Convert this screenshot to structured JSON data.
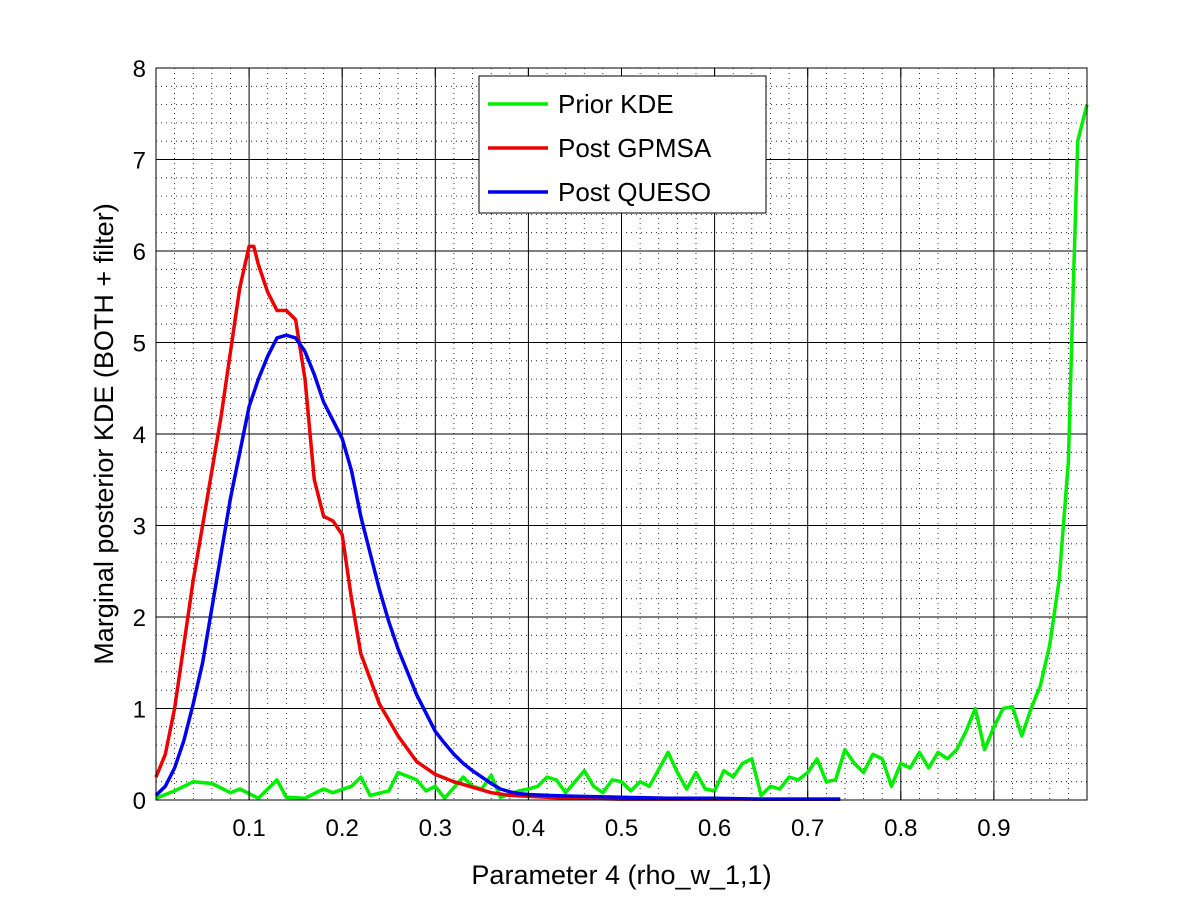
{
  "chart_data": {
    "type": "line",
    "title": "",
    "xlabel": "Parameter 4 (rho_w_1,1)",
    "ylabel": "Marginal posterior KDE (BOTH + filter)",
    "xlim": [
      0,
      1
    ],
    "ylim": [
      0,
      8
    ],
    "xticks": [
      0.1,
      0.2,
      0.3,
      0.4,
      0.5,
      0.6,
      0.7,
      0.8,
      0.9
    ],
    "xtick_labels": [
      "0.1",
      "0.2",
      "0.3",
      "0.4",
      "0.5",
      "0.6",
      "0.7",
      "0.8",
      "0.9"
    ],
    "yticks": [
      0,
      1,
      2,
      3,
      4,
      5,
      6,
      7,
      8
    ],
    "ytick_labels": [
      "0",
      "1",
      "2",
      "3",
      "4",
      "5",
      "6",
      "7",
      "8"
    ],
    "grid": true,
    "minor_grid": true,
    "legend_position": "top-center",
    "series": [
      {
        "name": "Prior KDE",
        "color": "#00ee00",
        "points": [
          [
            0.0,
            0.02
          ],
          [
            0.02,
            0.1
          ],
          [
            0.04,
            0.2
          ],
          [
            0.06,
            0.18
          ],
          [
            0.08,
            0.08
          ],
          [
            0.09,
            0.12
          ],
          [
            0.11,
            0.02
          ],
          [
            0.13,
            0.22
          ],
          [
            0.14,
            0.03
          ],
          [
            0.16,
            0.02
          ],
          [
            0.18,
            0.12
          ],
          [
            0.19,
            0.08
          ],
          [
            0.21,
            0.15
          ],
          [
            0.22,
            0.25
          ],
          [
            0.23,
            0.05
          ],
          [
            0.25,
            0.1
          ],
          [
            0.26,
            0.3
          ],
          [
            0.28,
            0.22
          ],
          [
            0.29,
            0.1
          ],
          [
            0.3,
            0.15
          ],
          [
            0.31,
            0.02
          ],
          [
            0.33,
            0.25
          ],
          [
            0.34,
            0.15
          ],
          [
            0.35,
            0.12
          ],
          [
            0.36,
            0.27
          ],
          [
            0.37,
            0.03
          ],
          [
            0.39,
            0.1
          ],
          [
            0.4,
            0.12
          ],
          [
            0.41,
            0.15
          ],
          [
            0.42,
            0.25
          ],
          [
            0.43,
            0.22
          ],
          [
            0.44,
            0.08
          ],
          [
            0.46,
            0.32
          ],
          [
            0.47,
            0.15
          ],
          [
            0.48,
            0.08
          ],
          [
            0.49,
            0.22
          ],
          [
            0.5,
            0.2
          ],
          [
            0.51,
            0.1
          ],
          [
            0.52,
            0.2
          ],
          [
            0.53,
            0.15
          ],
          [
            0.55,
            0.52
          ],
          [
            0.56,
            0.3
          ],
          [
            0.57,
            0.12
          ],
          [
            0.58,
            0.3
          ],
          [
            0.59,
            0.12
          ],
          [
            0.6,
            0.1
          ],
          [
            0.61,
            0.32
          ],
          [
            0.62,
            0.25
          ],
          [
            0.63,
            0.4
          ],
          [
            0.64,
            0.45
          ],
          [
            0.65,
            0.05
          ],
          [
            0.66,
            0.15
          ],
          [
            0.67,
            0.12
          ],
          [
            0.68,
            0.25
          ],
          [
            0.69,
            0.22
          ],
          [
            0.7,
            0.3
          ],
          [
            0.71,
            0.45
          ],
          [
            0.72,
            0.2
          ],
          [
            0.73,
            0.22
          ],
          [
            0.74,
            0.55
          ],
          [
            0.75,
            0.4
          ],
          [
            0.76,
            0.3
          ],
          [
            0.77,
            0.5
          ],
          [
            0.78,
            0.45
          ],
          [
            0.79,
            0.15
          ],
          [
            0.8,
            0.4
          ],
          [
            0.81,
            0.35
          ],
          [
            0.82,
            0.52
          ],
          [
            0.83,
            0.35
          ],
          [
            0.84,
            0.52
          ],
          [
            0.85,
            0.45
          ],
          [
            0.86,
            0.55
          ],
          [
            0.87,
            0.75
          ],
          [
            0.88,
            1.0
          ],
          [
            0.89,
            0.55
          ],
          [
            0.9,
            0.8
          ],
          [
            0.91,
            1.0
          ],
          [
            0.92,
            1.02
          ],
          [
            0.93,
            0.7
          ],
          [
            0.94,
            1.0
          ],
          [
            0.95,
            1.25
          ],
          [
            0.96,
            1.7
          ],
          [
            0.97,
            2.4
          ],
          [
            0.98,
            3.7
          ],
          [
            0.985,
            5.5
          ],
          [
            0.99,
            7.2
          ],
          [
            1.0,
            7.6
          ]
        ]
      },
      {
        "name": "Post GPMSA",
        "color": "#ee0000",
        "points": [
          [
            0.0,
            0.25
          ],
          [
            0.01,
            0.5
          ],
          [
            0.02,
            1.0
          ],
          [
            0.03,
            1.7
          ],
          [
            0.04,
            2.4
          ],
          [
            0.05,
            3.0
          ],
          [
            0.06,
            3.6
          ],
          [
            0.07,
            4.2
          ],
          [
            0.08,
            4.9
          ],
          [
            0.09,
            5.6
          ],
          [
            0.1,
            6.05
          ],
          [
            0.105,
            6.05
          ],
          [
            0.11,
            5.85
          ],
          [
            0.12,
            5.55
          ],
          [
            0.13,
            5.35
          ],
          [
            0.14,
            5.35
          ],
          [
            0.15,
            5.25
          ],
          [
            0.16,
            4.6
          ],
          [
            0.17,
            3.5
          ],
          [
            0.18,
            3.1
          ],
          [
            0.19,
            3.05
          ],
          [
            0.2,
            2.9
          ],
          [
            0.21,
            2.2
          ],
          [
            0.22,
            1.6
          ],
          [
            0.24,
            1.05
          ],
          [
            0.26,
            0.7
          ],
          [
            0.28,
            0.42
          ],
          [
            0.3,
            0.28
          ],
          [
            0.32,
            0.2
          ],
          [
            0.34,
            0.14
          ],
          [
            0.36,
            0.08
          ],
          [
            0.38,
            0.05
          ],
          [
            0.4,
            0.04
          ],
          [
            0.42,
            0.03
          ],
          [
            0.45,
            0.02
          ],
          [
            0.5,
            0.01
          ],
          [
            0.6,
            0.01
          ],
          [
            0.7,
            0.01
          ],
          [
            0.735,
            0.01
          ]
        ]
      },
      {
        "name": "Post QUESO",
        "color": "#0000ee",
        "points": [
          [
            0.0,
            0.05
          ],
          [
            0.01,
            0.15
          ],
          [
            0.02,
            0.35
          ],
          [
            0.03,
            0.65
          ],
          [
            0.04,
            1.05
          ],
          [
            0.05,
            1.5
          ],
          [
            0.06,
            2.1
          ],
          [
            0.07,
            2.7
          ],
          [
            0.08,
            3.3
          ],
          [
            0.09,
            3.8
          ],
          [
            0.1,
            4.3
          ],
          [
            0.11,
            4.6
          ],
          [
            0.12,
            4.85
          ],
          [
            0.13,
            5.05
          ],
          [
            0.14,
            5.08
          ],
          [
            0.15,
            5.05
          ],
          [
            0.16,
            4.9
          ],
          [
            0.17,
            4.65
          ],
          [
            0.18,
            4.35
          ],
          [
            0.19,
            4.15
          ],
          [
            0.2,
            3.95
          ],
          [
            0.21,
            3.6
          ],
          [
            0.22,
            3.1
          ],
          [
            0.23,
            2.7
          ],
          [
            0.24,
            2.3
          ],
          [
            0.25,
            1.95
          ],
          [
            0.26,
            1.65
          ],
          [
            0.27,
            1.4
          ],
          [
            0.28,
            1.15
          ],
          [
            0.29,
            0.95
          ],
          [
            0.3,
            0.75
          ],
          [
            0.31,
            0.62
          ],
          [
            0.32,
            0.5
          ],
          [
            0.33,
            0.4
          ],
          [
            0.34,
            0.32
          ],
          [
            0.35,
            0.25
          ],
          [
            0.36,
            0.18
          ],
          [
            0.37,
            0.12
          ],
          [
            0.38,
            0.09
          ],
          [
            0.39,
            0.07
          ],
          [
            0.4,
            0.06
          ],
          [
            0.42,
            0.05
          ],
          [
            0.45,
            0.04
          ],
          [
            0.5,
            0.03
          ],
          [
            0.55,
            0.02
          ],
          [
            0.6,
            0.02
          ],
          [
            0.65,
            0.01
          ],
          [
            0.7,
            0.01
          ],
          [
            0.735,
            0.01
          ]
        ]
      }
    ]
  }
}
